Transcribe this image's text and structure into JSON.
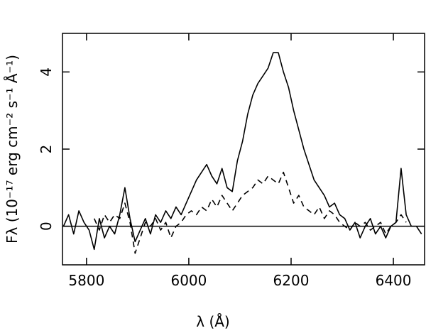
{
  "chart_data": {
    "type": "line",
    "xlabel": "λ (Å)",
    "ylabel": "Fλ (10⁻¹⁷ erg cm⁻² s⁻¹ Å⁻¹)",
    "x": [
      5755,
      5765,
      5775,
      5785,
      5795,
      5805,
      5815,
      5825,
      5835,
      5845,
      5855,
      5865,
      5875,
      5885,
      5895,
      5905,
      5915,
      5925,
      5935,
      5945,
      5955,
      5965,
      5975,
      5985,
      5995,
      6005,
      6015,
      6025,
      6035,
      6045,
      6055,
      6065,
      6075,
      6085,
      6095,
      6105,
      6115,
      6125,
      6135,
      6145,
      6155,
      6165,
      6175,
      6185,
      6195,
      6205,
      6215,
      6225,
      6235,
      6245,
      6255,
      6265,
      6275,
      6285,
      6295,
      6305,
      6315,
      6325,
      6335,
      6345,
      6355,
      6365,
      6375,
      6385,
      6395,
      6405,
      6415,
      6425,
      6435,
      6445,
      6455
    ],
    "series": [
      {
        "color": "#000000",
        "style": "solid",
        "values": [
          0.0,
          0.3,
          -0.2,
          0.4,
          0.1,
          -0.1,
          -0.6,
          0.2,
          -0.3,
          0.0,
          -0.2,
          0.3,
          1.0,
          0.2,
          -0.4,
          -0.1,
          0.2,
          -0.2,
          0.3,
          0.1,
          0.4,
          0.2,
          0.5,
          0.3,
          0.6,
          0.9,
          1.2,
          1.4,
          1.6,
          1.3,
          1.1,
          1.5,
          1.0,
          0.9,
          1.7,
          2.2,
          2.9,
          3.4,
          3.7,
          3.9,
          4.1,
          4.5,
          4.5,
          4.0,
          3.6,
          3.0,
          2.5,
          2.0,
          1.6,
          1.2,
          1.0,
          0.8,
          0.5,
          0.6,
          0.3,
          0.2,
          -0.1,
          0.1,
          -0.3,
          0.0,
          0.2,
          -0.2,
          0.0,
          -0.3,
          0.0,
          0.1,
          1.5,
          0.3,
          0.0,
          0.0,
          -0.2
        ]
      },
      {
        "color": "#000000",
        "style": "dashed",
        "values": [
          null,
          null,
          null,
          null,
          null,
          null,
          0.2,
          -0.1,
          0.3,
          0.1,
          0.3,
          0.2,
          0.6,
          0.1,
          -0.7,
          -0.3,
          0.1,
          0.0,
          0.2,
          -0.1,
          0.1,
          -0.3,
          0.0,
          0.1,
          0.3,
          0.4,
          0.3,
          0.5,
          0.4,
          0.7,
          0.5,
          0.8,
          0.6,
          0.4,
          0.6,
          0.8,
          0.9,
          1.0,
          1.2,
          1.1,
          1.3,
          1.2,
          1.1,
          1.4,
          1.0,
          0.6,
          0.8,
          0.5,
          0.4,
          0.3,
          0.5,
          0.2,
          0.4,
          0.3,
          0.1,
          0.0,
          -0.1,
          0.1,
          0.0,
          0.1,
          -0.1,
          0.0,
          0.1,
          -0.2,
          0.0,
          0.1,
          0.3,
          0.1,
          null,
          null,
          null
        ]
      }
    ],
    "reference_line": 0,
    "xlim": [
      5753,
      6461
    ],
    "xticks": [
      5800,
      6000,
      6200,
      6400
    ],
    "ylim": [
      -1,
      5
    ],
    "yticks": [
      0,
      2,
      4
    ]
  }
}
